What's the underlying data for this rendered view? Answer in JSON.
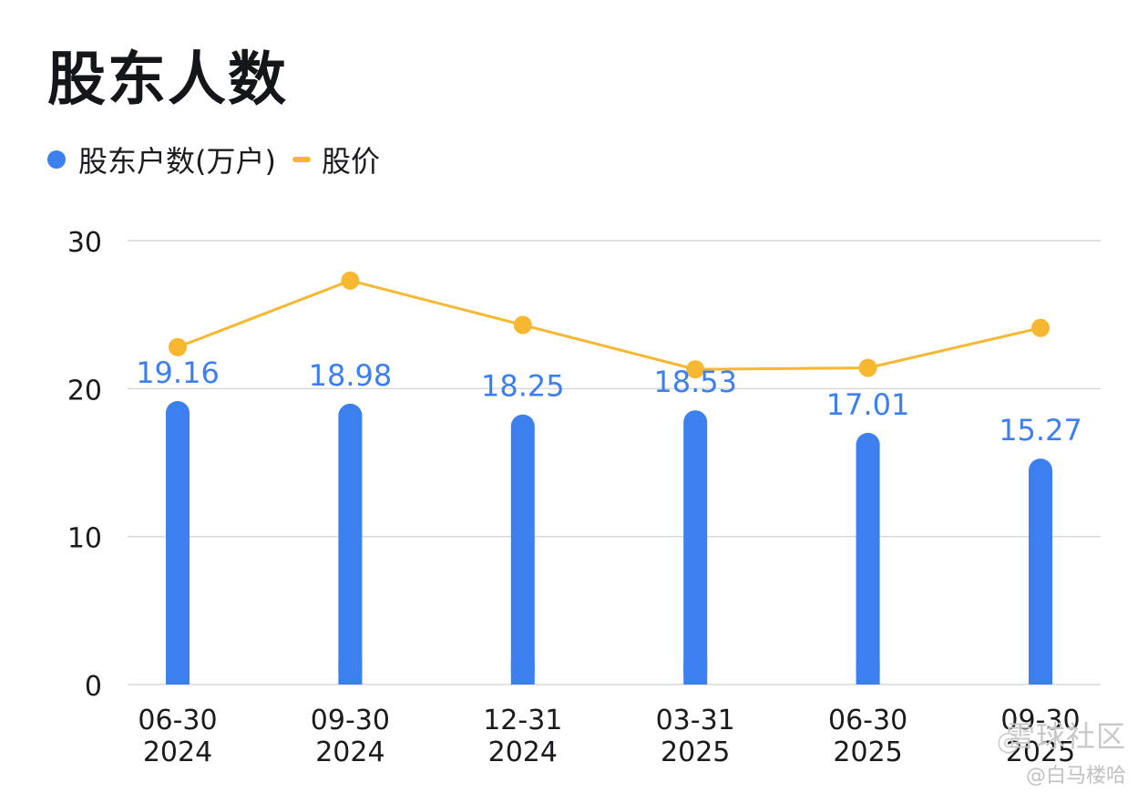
{
  "title": "股东人数",
  "legend": {
    "bar_label": "股东户数(万户)",
    "line_label": "股价"
  },
  "colors": {
    "bar": "#3b80ee",
    "line": "#f7b731",
    "grid": "#d9d9d9",
    "value_label": "#3b80ee",
    "axis_text": "#1b1b1f"
  },
  "chart_data": {
    "type": "bar",
    "categories": [
      "06-30\n2024",
      "09-30\n2024",
      "12-31\n2024",
      "03-31\n2025",
      "06-30\n2025",
      "09-30\n2025"
    ],
    "series": [
      {
        "name": "股东户数(万户)",
        "type": "bar",
        "values": [
          19.16,
          18.98,
          18.25,
          18.53,
          17.01,
          15.27
        ]
      },
      {
        "name": "股价",
        "type": "line",
        "values": [
          22.8,
          27.3,
          24.3,
          21.3,
          21.4,
          24.1
        ]
      }
    ],
    "yticks": [
      0,
      10,
      20,
      30
    ],
    "ylim": [
      0,
      30
    ],
    "grid": true,
    "legend_position": "top-left"
  },
  "watermark": {
    "main": "雪球社区",
    "sub": "@白马楼哈",
    "icon": "snowball-icon"
  }
}
